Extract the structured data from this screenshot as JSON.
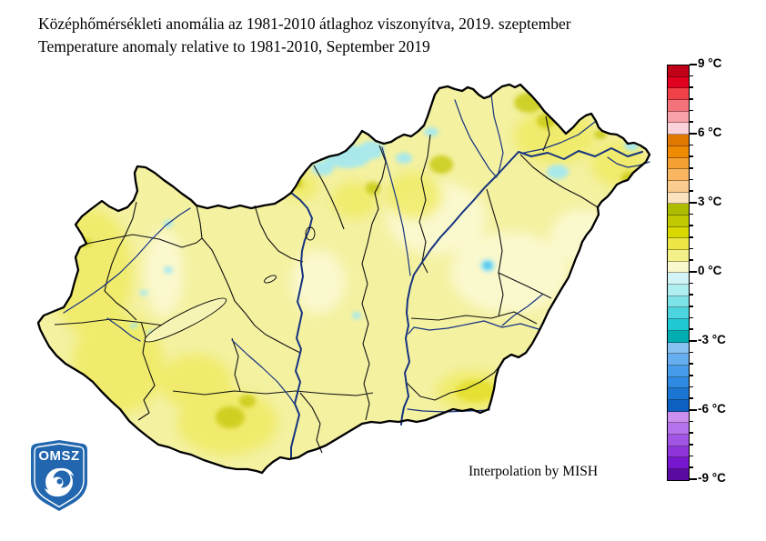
{
  "title": {
    "line1": "Középhőmérsékleti anomália az 1981-2010 átlaghoz viszonyítva, 2019. szeptember",
    "line2": "Temperature anomaly relative to 1981-2010, September 2019"
  },
  "map": {
    "annotation": "Interpolation by MISH",
    "base_color": "#f4f1a1",
    "border_color": "#000000",
    "county_line_color": "#111111",
    "river_color": "#16337f",
    "lake_fill": "#f6f4b4",
    "patch_lighter": "#fbf9d2",
    "patch_yellow": "#efea5e",
    "patch_bright_yellow": "#e4df2e",
    "patch_olive": "#c9ca12",
    "patch_cyan": "#a3e8f1",
    "patch_blue_dot": "#49c3ef"
  },
  "colorbar": {
    "unit": "°C",
    "min": -9,
    "max": 9,
    "step": 0.5,
    "major_tick_interval": 3,
    "labels_top_to_bottom": [
      "9 °C",
      "6 °C",
      "3 °C",
      "0 °C",
      "-3 °C",
      "-6 °C",
      "-9 °C"
    ],
    "colors_top_to_bottom": [
      "#bf0016",
      "#e20020",
      "#f04048",
      "#f4737b",
      "#f8a2a9",
      "#fbd3d8",
      "#e07800",
      "#ef8b00",
      "#f5a133",
      "#f8b660",
      "#facc8e",
      "#fce3bf",
      "#aebc00",
      "#c2c900",
      "#d9d800",
      "#ece646",
      "#f4f08a",
      "#faf8cd",
      "#d2f4f6",
      "#aeedf0",
      "#7ee2e9",
      "#4cd5de",
      "#1ec9d3",
      "#00adb0",
      "#87c1f2",
      "#66aeef",
      "#479ce9",
      "#2e8ae0",
      "#1b75d2",
      "#0d60bf",
      "#cb8ff0",
      "#b672ea",
      "#a255e2",
      "#8d35da",
      "#7716cf",
      "#5a0aa0"
    ]
  },
  "logo": {
    "text": "OMSZ",
    "shield_color": "#2166ae"
  }
}
